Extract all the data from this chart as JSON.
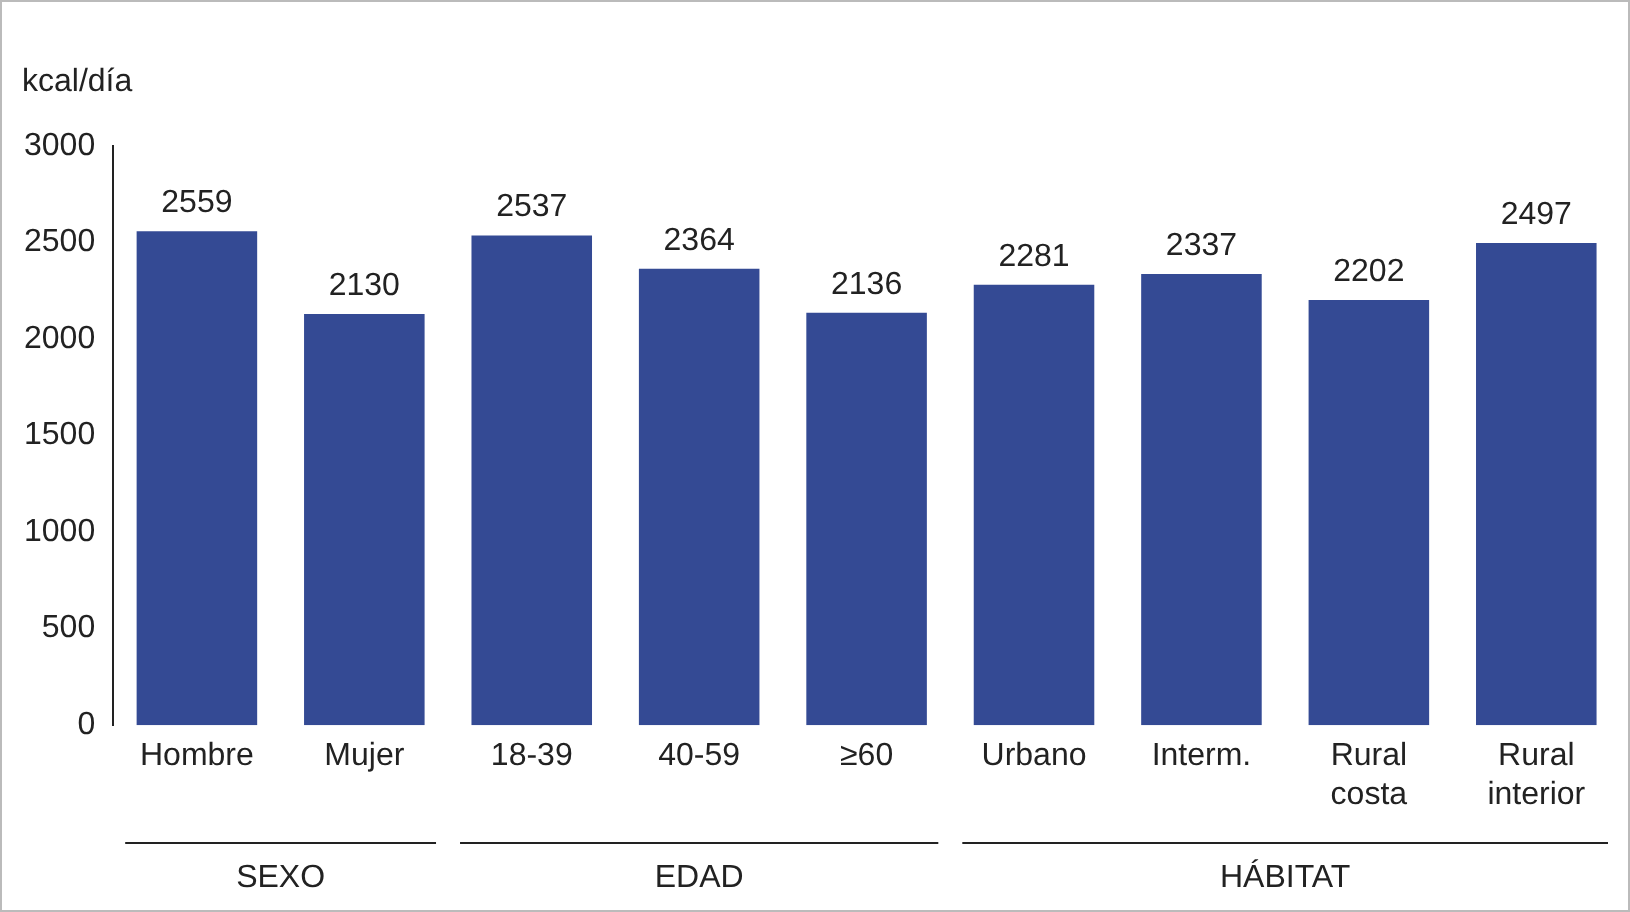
{
  "chart_data": {
    "type": "bar",
    "ylabel": "kcal/día",
    "categories": [
      "Hombre",
      "Mujer",
      "18-39",
      "40-59",
      "≥60",
      "Urbano",
      "Interm.",
      "Rural costa",
      "Rural interior"
    ],
    "values": [
      2559,
      2130,
      2537,
      2364,
      2136,
      2281,
      2337,
      2202,
      2497
    ],
    "color": "#344a94",
    "ylim": [
      0,
      3000
    ],
    "yticks": [
      0,
      500,
      1000,
      1500,
      2000,
      2500,
      3000
    ],
    "grid": false,
    "legend": false,
    "data_labels": true,
    "annotations": [
      "SEXO",
      "EDAD",
      "HÁBITAT"
    ]
  }
}
